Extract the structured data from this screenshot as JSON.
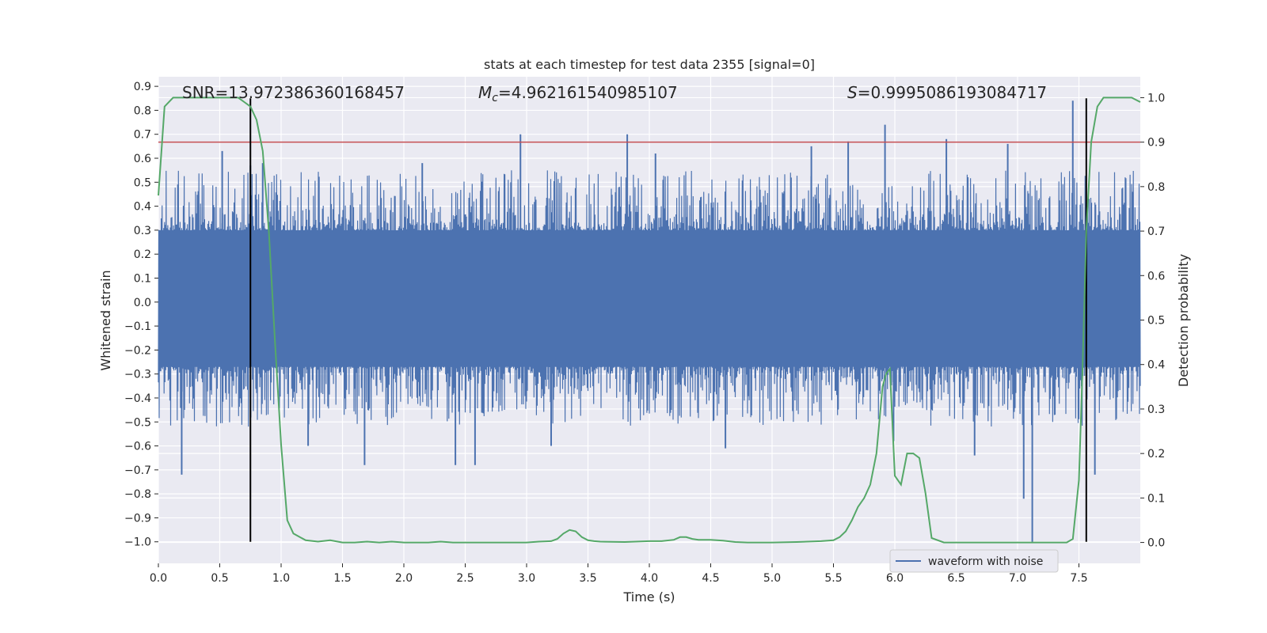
{
  "chart_data": {
    "type": "line",
    "title": "stats at each timestep for test data 2355 [signal=0]",
    "xlabel": "Time (s)",
    "ylabel": "Whitened strain",
    "y2label": "Detection probability",
    "xlim": [
      0.0,
      8.0
    ],
    "ylim": [
      -1.09,
      0.94
    ],
    "y2lim": [
      -0.047,
      1.047
    ],
    "xticks": [
      "0.0",
      "0.5",
      "1.0",
      "1.5",
      "2.0",
      "2.5",
      "3.0",
      "3.5",
      "4.0",
      "4.5",
      "5.0",
      "5.5",
      "6.0",
      "6.5",
      "7.0",
      "7.5"
    ],
    "yticks": [
      "0.9",
      "0.8",
      "0.7",
      "0.6",
      "0.5",
      "0.4",
      "0.3",
      "0.2",
      "0.1",
      "0.0",
      "−0.1",
      "−0.2",
      "−0.3",
      "−0.4",
      "−0.5",
      "−0.6",
      "−0.7",
      "−0.8",
      "−0.9",
      "−1.0"
    ],
    "y2ticks": [
      "1.0",
      "0.9",
      "0.8",
      "0.7",
      "0.6",
      "0.5",
      "0.4",
      "0.3",
      "0.2",
      "0.1",
      "0.0"
    ],
    "threshold": 0.9,
    "vlines": [
      0.75,
      7.56
    ],
    "vline_range": [
      -1.0,
      0.85
    ],
    "annotations": {
      "snr": "SNR=13.972386360168457",
      "mc_symbol": "M",
      "mc_sub": "c",
      "mc_value": "=4.962161540985107",
      "s_symbol": "S",
      "s_value": "=0.9995086193084717"
    },
    "legend": [
      "waveform with noise"
    ],
    "series": [
      {
        "name": "waveform with noise",
        "color": "#4c72b0",
        "duration": 8.0,
        "envelope": {
          "upper": 0.3,
          "lower": -0.27
        },
        "peaks": [
          [
            0.19,
            -0.72
          ],
          [
            0.52,
            0.63
          ],
          [
            0.75,
            0.57
          ],
          [
            0.85,
            0.58
          ],
          [
            1.22,
            -0.6
          ],
          [
            1.68,
            -0.68
          ],
          [
            2.15,
            0.58
          ],
          [
            2.42,
            -0.68
          ],
          [
            2.58,
            -0.68
          ],
          [
            2.95,
            0.7
          ],
          [
            3.2,
            -0.6
          ],
          [
            3.82,
            0.7
          ],
          [
            4.05,
            0.62
          ],
          [
            4.62,
            -0.61
          ],
          [
            5.32,
            0.65
          ],
          [
            5.62,
            0.67
          ],
          [
            5.92,
            0.74
          ],
          [
            5.99,
            -0.58
          ],
          [
            6.42,
            0.68
          ],
          [
            6.65,
            -0.64
          ],
          [
            6.92,
            0.66
          ],
          [
            7.05,
            -0.82
          ],
          [
            7.12,
            -1.0
          ],
          [
            7.45,
            0.84
          ],
          [
            7.63,
            -0.72
          ]
        ]
      },
      {
        "name": "detection probability",
        "color": "#55a868",
        "axis": "right",
        "x": [
          0.0,
          0.05,
          0.12,
          0.2,
          0.3,
          0.4,
          0.5,
          0.6,
          0.65,
          0.7,
          0.75,
          0.8,
          0.85,
          0.9,
          0.95,
          1.0,
          1.05,
          1.1,
          1.2,
          1.3,
          1.4,
          1.5,
          1.6,
          1.7,
          1.8,
          1.9,
          2.0,
          2.1,
          2.2,
          2.3,
          2.4,
          2.5,
          2.6,
          2.8,
          3.0,
          3.1,
          3.2,
          3.25,
          3.3,
          3.35,
          3.4,
          3.45,
          3.5,
          3.55,
          3.6,
          3.8,
          4.0,
          4.1,
          4.2,
          4.25,
          4.3,
          4.35,
          4.4,
          4.5,
          4.6,
          4.7,
          4.8,
          5.0,
          5.2,
          5.4,
          5.5,
          5.55,
          5.6,
          5.65,
          5.7,
          5.75,
          5.8,
          5.85,
          5.9,
          5.93,
          5.96,
          6.0,
          6.05,
          6.1,
          6.15,
          6.2,
          6.25,
          6.3,
          6.4,
          6.5,
          6.6,
          6.8,
          7.0,
          7.2,
          7.3,
          7.4,
          7.45,
          7.5,
          7.53,
          7.56,
          7.6,
          7.65,
          7.7,
          7.8,
          7.85,
          7.93,
          8.0
        ],
        "values": [
          0.78,
          0.98,
          1.0,
          1.0,
          1.0,
          1.0,
          1.0,
          1.0,
          1.0,
          0.99,
          0.98,
          0.95,
          0.88,
          0.7,
          0.45,
          0.22,
          0.05,
          0.02,
          0.005,
          0.002,
          0.005,
          0.0,
          0.0,
          0.002,
          0.0,
          0.002,
          0.0,
          0.0,
          0.0,
          0.002,
          0.0,
          0.0,
          0.0,
          0.0,
          0.0,
          0.002,
          0.003,
          0.008,
          0.02,
          0.028,
          0.025,
          0.012,
          0.005,
          0.003,
          0.002,
          0.001,
          0.003,
          0.003,
          0.006,
          0.012,
          0.012,
          0.008,
          0.006,
          0.006,
          0.004,
          0.001,
          0.0,
          0.0,
          0.001,
          0.003,
          0.005,
          0.012,
          0.025,
          0.05,
          0.08,
          0.1,
          0.13,
          0.2,
          0.35,
          0.38,
          0.39,
          0.15,
          0.13,
          0.2,
          0.2,
          0.19,
          0.11,
          0.01,
          0.0,
          0.0,
          0.0,
          0.0,
          0.0,
          0.0,
          0.0,
          0.0,
          0.008,
          0.14,
          0.4,
          0.7,
          0.9,
          0.98,
          1.0,
          1.0,
          1.0,
          1.0,
          0.99
        ]
      }
    ]
  }
}
